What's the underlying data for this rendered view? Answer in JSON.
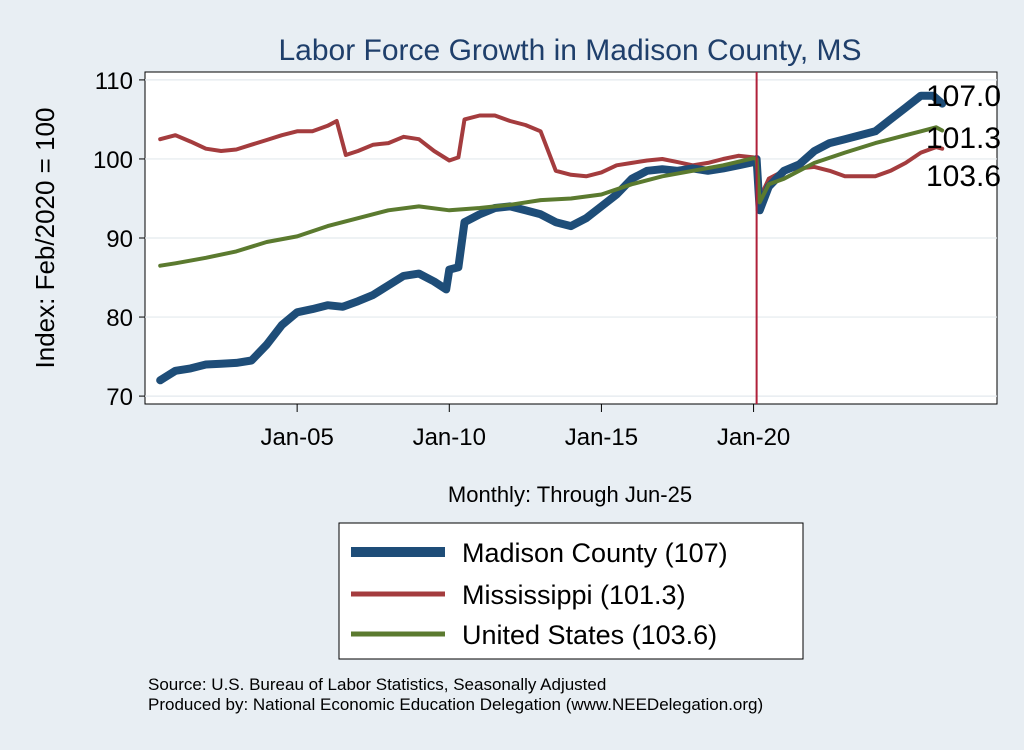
{
  "chart_data": {
    "type": "line",
    "title": "Labor Force Growth in Madison  County, MS",
    "xlabel": "Monthly: Through Jun-25",
    "ylabel": "Index: Feb/2020 = 100",
    "ylim": [
      69,
      111
    ],
    "yticks": [
      70,
      80,
      90,
      100,
      110
    ],
    "xlim": [
      2000.0,
      2028.0
    ],
    "xticks": [
      {
        "value": 2005.0,
        "label": "Jan-05"
      },
      {
        "value": 2010.0,
        "label": "Jan-10"
      },
      {
        "value": 2015.0,
        "label": "Jan-15"
      },
      {
        "value": 2020.0,
        "label": "Jan-20"
      }
    ],
    "grid": true,
    "vline": {
      "x": 2020.1,
      "color": "#b0213a"
    },
    "legend_position": "bottom",
    "series": [
      {
        "name": "Madison  County (107)",
        "color": "#1e4d78",
        "end_label": "107.0",
        "points": [
          [
            2000.5,
            72
          ],
          [
            2001.0,
            73.2
          ],
          [
            2001.5,
            73.5
          ],
          [
            2002.0,
            74
          ],
          [
            2002.5,
            74.1
          ],
          [
            2003.0,
            74.2
          ],
          [
            2003.5,
            74.5
          ],
          [
            2004.0,
            76.5
          ],
          [
            2004.5,
            79
          ],
          [
            2005.0,
            80.6
          ],
          [
            2005.5,
            81
          ],
          [
            2006.0,
            81.5
          ],
          [
            2006.5,
            81.3
          ],
          [
            2007.0,
            82
          ],
          [
            2007.5,
            82.8
          ],
          [
            2008.0,
            84
          ],
          [
            2008.5,
            85.2
          ],
          [
            2009.0,
            85.5
          ],
          [
            2009.5,
            84.5
          ],
          [
            2009.9,
            83.5
          ],
          [
            2010.0,
            86
          ],
          [
            2010.3,
            86.3
          ],
          [
            2010.5,
            92
          ],
          [
            2011.0,
            93
          ],
          [
            2011.5,
            93.8
          ],
          [
            2012.0,
            94
          ],
          [
            2012.5,
            93.5
          ],
          [
            2013.0,
            93
          ],
          [
            2013.5,
            92
          ],
          [
            2014.0,
            91.5
          ],
          [
            2014.5,
            92.5
          ],
          [
            2015.0,
            94
          ],
          [
            2015.5,
            95.5
          ],
          [
            2016.0,
            97.5
          ],
          [
            2016.5,
            98.5
          ],
          [
            2017.0,
            98.7
          ],
          [
            2017.5,
            98.5
          ],
          [
            2018.0,
            98.8
          ],
          [
            2018.5,
            98.5
          ],
          [
            2019.0,
            98.8
          ],
          [
            2019.5,
            99.2
          ],
          [
            2020.0,
            99.6
          ],
          [
            2020.1,
            100
          ],
          [
            2020.2,
            93.5
          ],
          [
            2020.5,
            96.5
          ],
          [
            2021.0,
            98.5
          ],
          [
            2021.5,
            99.3
          ],
          [
            2022.0,
            101
          ],
          [
            2022.5,
            102
          ],
          [
            2023.0,
            102.5
          ],
          [
            2023.5,
            103
          ],
          [
            2024.0,
            103.5
          ],
          [
            2024.5,
            105
          ],
          [
            2025.0,
            106.5
          ],
          [
            2025.5,
            108
          ],
          [
            2025.9,
            108
          ],
          [
            2026.2,
            107
          ]
        ]
      },
      {
        "name": "Mississippi (101.3)",
        "color": "#a43c3e",
        "end_label": "101.3",
        "points": [
          [
            2000.5,
            102.5
          ],
          [
            2001.0,
            103
          ],
          [
            2001.5,
            102.2
          ],
          [
            2002.0,
            101.3
          ],
          [
            2002.5,
            101
          ],
          [
            2003.0,
            101.2
          ],
          [
            2003.5,
            101.8
          ],
          [
            2004.0,
            102.4
          ],
          [
            2004.5,
            103
          ],
          [
            2005.0,
            103.5
          ],
          [
            2005.5,
            103.5
          ],
          [
            2006.0,
            104.2
          ],
          [
            2006.3,
            104.8
          ],
          [
            2006.6,
            100.5
          ],
          [
            2007.0,
            101
          ],
          [
            2007.5,
            101.8
          ],
          [
            2008.0,
            102
          ],
          [
            2008.5,
            102.8
          ],
          [
            2009.0,
            102.5
          ],
          [
            2009.5,
            101
          ],
          [
            2010.0,
            99.8
          ],
          [
            2010.3,
            100.2
          ],
          [
            2010.5,
            105
          ],
          [
            2011.0,
            105.5
          ],
          [
            2011.5,
            105.5
          ],
          [
            2012.0,
            104.8
          ],
          [
            2012.5,
            104.3
          ],
          [
            2013.0,
            103.5
          ],
          [
            2013.5,
            98.5
          ],
          [
            2014.0,
            98
          ],
          [
            2014.5,
            97.8
          ],
          [
            2015.0,
            98.3
          ],
          [
            2015.5,
            99.2
          ],
          [
            2016.0,
            99.5
          ],
          [
            2016.5,
            99.8
          ],
          [
            2017.0,
            100
          ],
          [
            2017.5,
            99.6
          ],
          [
            2018.0,
            99.2
          ],
          [
            2018.5,
            99.5
          ],
          [
            2019.0,
            100
          ],
          [
            2019.5,
            100.4
          ],
          [
            2020.0,
            100.2
          ],
          [
            2020.1,
            100
          ],
          [
            2020.2,
            95
          ],
          [
            2020.5,
            97.5
          ],
          [
            2021.0,
            98.5
          ],
          [
            2021.5,
            98.8
          ],
          [
            2022.0,
            99
          ],
          [
            2022.5,
            98.5
          ],
          [
            2023.0,
            97.8
          ],
          [
            2023.5,
            97.8
          ],
          [
            2024.0,
            97.8
          ],
          [
            2024.5,
            98.5
          ],
          [
            2025.0,
            99.5
          ],
          [
            2025.5,
            100.8
          ],
          [
            2026.0,
            101.5
          ],
          [
            2026.2,
            101.3
          ]
        ]
      },
      {
        "name": "United States (103.6)",
        "color": "#5b7a2f",
        "end_label": "103.6",
        "points": [
          [
            2000.5,
            86.5
          ],
          [
            2001.0,
            86.8
          ],
          [
            2002.0,
            87.5
          ],
          [
            2003.0,
            88.3
          ],
          [
            2004.0,
            89.5
          ],
          [
            2005.0,
            90.2
          ],
          [
            2006.0,
            91.5
          ],
          [
            2007.0,
            92.5
          ],
          [
            2008.0,
            93.5
          ],
          [
            2009.0,
            94
          ],
          [
            2010.0,
            93.5
          ],
          [
            2011.0,
            93.8
          ],
          [
            2012.0,
            94.2
          ],
          [
            2013.0,
            94.8
          ],
          [
            2014.0,
            95
          ],
          [
            2015.0,
            95.5
          ],
          [
            2016.0,
            96.8
          ],
          [
            2017.0,
            97.8
          ],
          [
            2018.0,
            98.5
          ],
          [
            2019.0,
            99.2
          ],
          [
            2020.0,
            100.1
          ],
          [
            2020.1,
            100
          ],
          [
            2020.2,
            94.5
          ],
          [
            2020.5,
            96.8
          ],
          [
            2021.0,
            97.5
          ],
          [
            2022.0,
            99.5
          ],
          [
            2023.0,
            100.8
          ],
          [
            2024.0,
            102
          ],
          [
            2025.0,
            103
          ],
          [
            2025.5,
            103.5
          ],
          [
            2026.0,
            104
          ],
          [
            2026.2,
            103.6
          ]
        ]
      }
    ],
    "source_lines": [
      "Source: U.S. Bureau of Labor Statistics, Seasonally Adjusted",
      "Produced by: National Economic Education Delegation (www.NEEDelegation.org)"
    ]
  }
}
